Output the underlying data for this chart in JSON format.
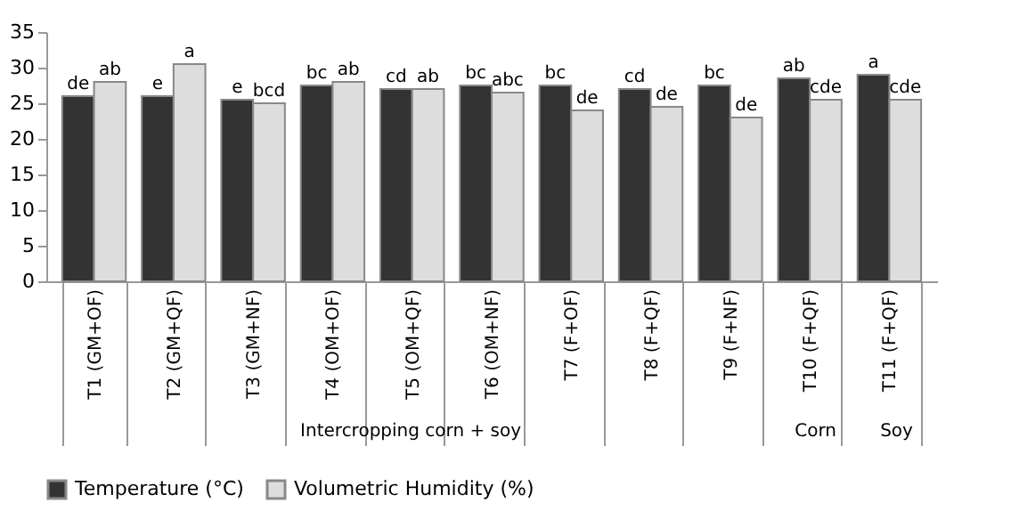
{
  "chart_data": {
    "type": "bar",
    "categories": [
      "T1 (GM+OF)",
      "T2 (GM+QF)",
      "T3 (GM+NF)",
      "T4 (OM+OF)",
      "T5 (OM+QF)",
      "T6 (OM+NF)",
      "T7 (F+OF)",
      "T8 (F+QF)",
      "T9 (F+NF)",
      "T10 (F+QF)",
      "T11 (F+QF)"
    ],
    "series": [
      {
        "name": "Temperature (°C)",
        "color": "#333333",
        "values": [
          26,
          26,
          25.5,
          27.5,
          27,
          27.5,
          27.5,
          27,
          27.5,
          28.5,
          29
        ],
        "value_labels": [
          "de",
          "e",
          "e",
          "bc",
          "cd",
          "bc",
          "bc",
          "cd",
          "bc",
          "ab",
          "a"
        ]
      },
      {
        "name": "Volumetric Humidity (%)",
        "color": "#dddddd",
        "values": [
          28,
          30.5,
          25,
          28,
          27,
          26.5,
          24,
          24.5,
          23,
          25.5,
          25.5
        ],
        "value_labels": [
          "ab",
          "a",
          "bcd",
          "ab",
          "ab",
          "abc",
          "de",
          "de",
          "de",
          "cde",
          "cde"
        ]
      }
    ],
    "ylim": [
      0,
      35
    ],
    "yticks": [
      0,
      5,
      10,
      15,
      20,
      25,
      30,
      35
    ],
    "grid": false,
    "legend": "bottom",
    "annotations": [
      "Intercropping corn + soy",
      "Corn",
      "Soy"
    ]
  }
}
